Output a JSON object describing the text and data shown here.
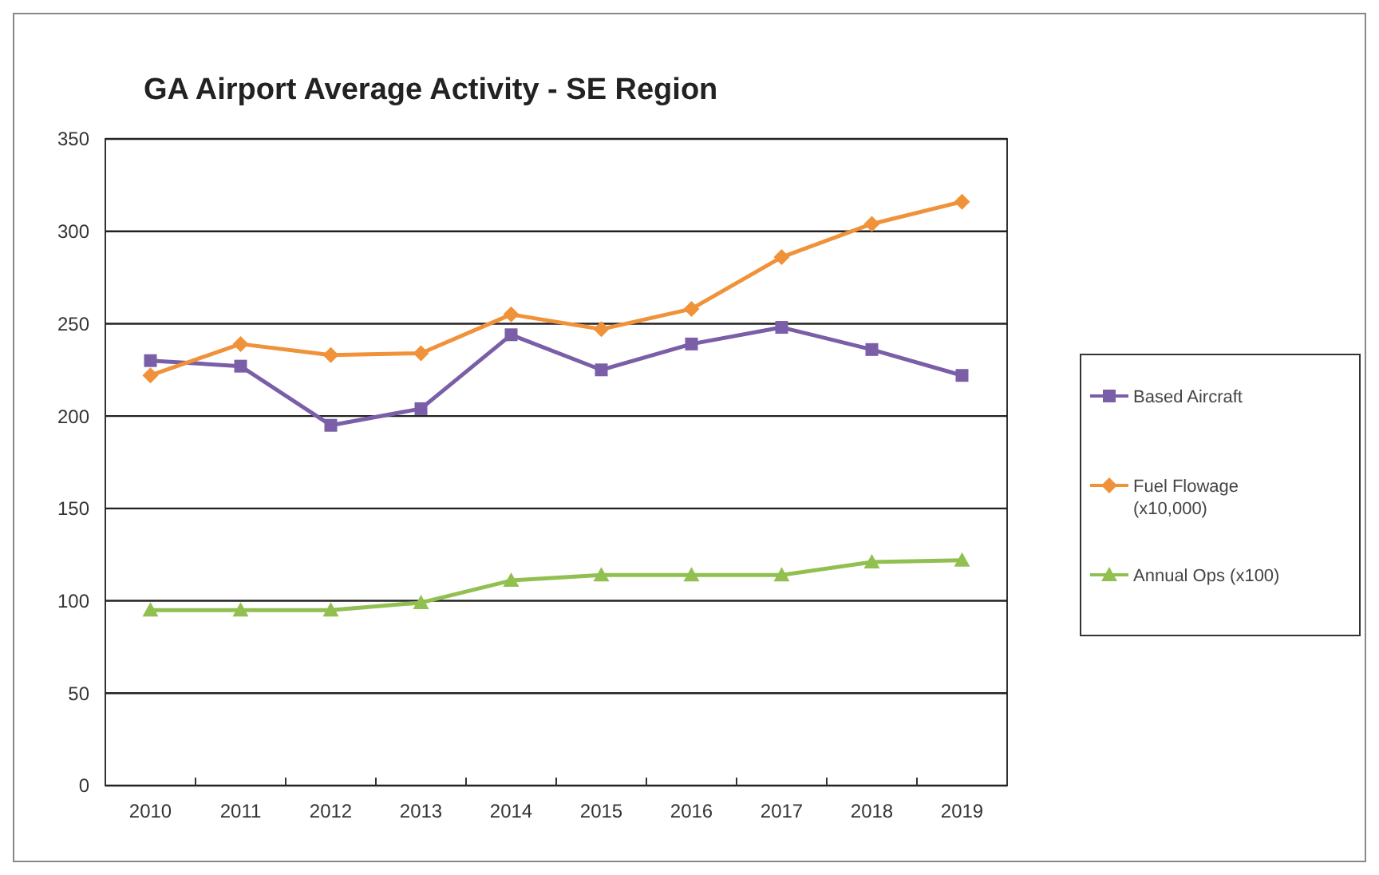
{
  "chart_data": {
    "type": "line",
    "title": "GA Airport Average Activity  - SE Region",
    "categories": [
      "2010",
      "2011",
      "2012",
      "2013",
      "2014",
      "2015",
      "2016",
      "2017",
      "2018",
      "2019"
    ],
    "series": [
      {
        "name": "Based Aircraft",
        "color": "#7a5fa8",
        "marker": "square",
        "values": [
          230,
          227,
          195,
          204,
          244,
          225,
          239,
          248,
          236,
          222
        ]
      },
      {
        "name": "Fuel Flowage (x10,000)",
        "color": "#f0923a",
        "marker": "diamond",
        "values": [
          222,
          239,
          233,
          234,
          255,
          247,
          258,
          286,
          304,
          316
        ]
      },
      {
        "name": "Annual Ops (x100)",
        "color": "#92c050",
        "marker": "triangle",
        "values": [
          95,
          95,
          95,
          99,
          111,
          114,
          114,
          114,
          121,
          122
        ]
      }
    ],
    "ylim": [
      0,
      350
    ],
    "yticks": [
      0,
      50,
      100,
      150,
      200,
      250,
      300,
      350
    ],
    "grid": "y",
    "legend": "right"
  }
}
